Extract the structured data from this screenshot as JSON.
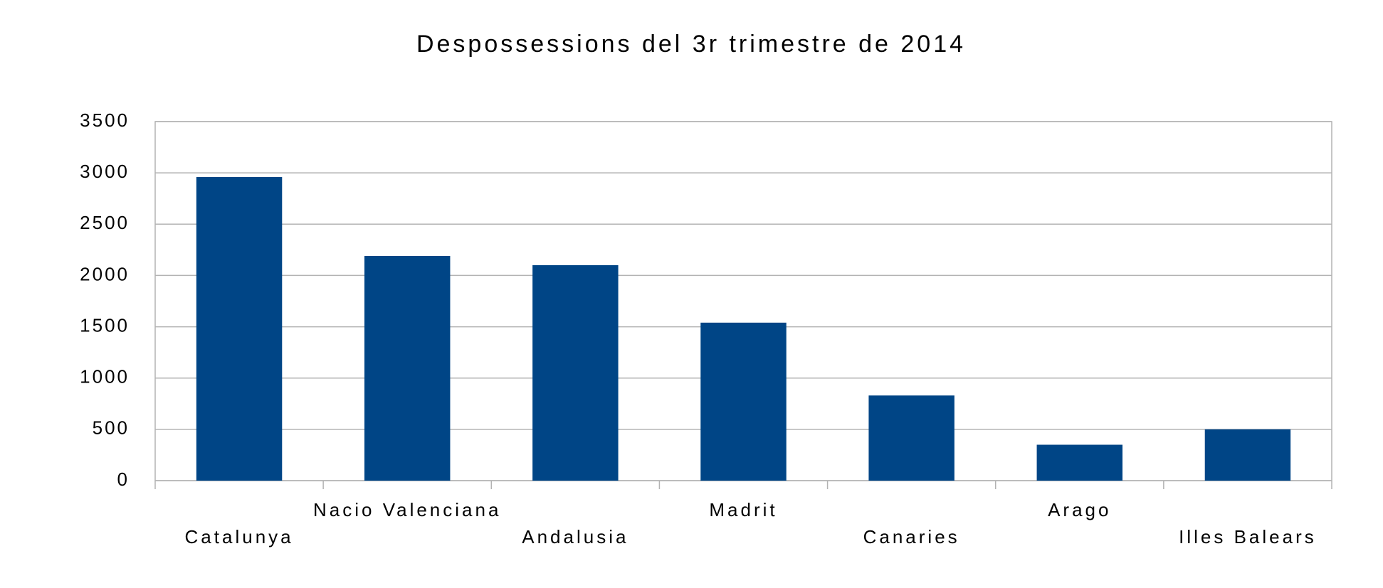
{
  "chart_data": {
    "type": "bar",
    "title": "Despossessions del 3r trimestre de 2014",
    "categories": [
      "Catalunya",
      "Nacio Valenciana",
      "Andalusia",
      "Madrit",
      "Canaries",
      "Arago",
      "Illes Balears"
    ],
    "values": [
      2960,
      2190,
      2100,
      1540,
      830,
      350,
      500
    ],
    "color": "#004586",
    "ylim": [
      0,
      3500
    ],
    "yticks": [
      0,
      500,
      1000,
      1500,
      2000,
      2500,
      3000,
      3500
    ],
    "grid": true
  }
}
